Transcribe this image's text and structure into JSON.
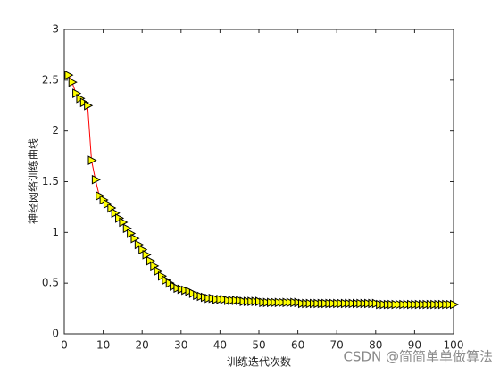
{
  "chart_data": {
    "type": "line",
    "ylabel": "神经网络训练曲线",
    "xlabel": "训练迭代次数",
    "watermark": "CSDN @简简单单做算法",
    "x": [
      1,
      2,
      3,
      4,
      5,
      6,
      7,
      8,
      9,
      10,
      11,
      12,
      13,
      14,
      15,
      16,
      17,
      18,
      19,
      20,
      21,
      22,
      23,
      24,
      25,
      26,
      27,
      28,
      29,
      30,
      31,
      32,
      33,
      34,
      35,
      36,
      37,
      38,
      39,
      40,
      41,
      42,
      43,
      44,
      45,
      46,
      47,
      48,
      49,
      50,
      51,
      52,
      53,
      54,
      55,
      56,
      57,
      58,
      59,
      60,
      61,
      62,
      63,
      64,
      65,
      66,
      67,
      68,
      69,
      70,
      71,
      72,
      73,
      74,
      75,
      76,
      77,
      78,
      79,
      80,
      81,
      82,
      83,
      84,
      85,
      86,
      87,
      88,
      89,
      90,
      91,
      92,
      93,
      94,
      95,
      96,
      97,
      98,
      99,
      100
    ],
    "values": [
      2.55,
      2.48,
      2.37,
      2.32,
      2.28,
      2.25,
      1.71,
      1.52,
      1.36,
      1.32,
      1.28,
      1.24,
      1.19,
      1.14,
      1.1,
      1.04,
      0.99,
      0.94,
      0.88,
      0.83,
      0.78,
      0.72,
      0.67,
      0.62,
      0.57,
      0.53,
      0.5,
      0.47,
      0.45,
      0.44,
      0.43,
      0.42,
      0.4,
      0.38,
      0.37,
      0.36,
      0.35,
      0.35,
      0.34,
      0.34,
      0.34,
      0.33,
      0.33,
      0.33,
      0.33,
      0.32,
      0.32,
      0.32,
      0.32,
      0.32,
      0.31,
      0.31,
      0.31,
      0.31,
      0.31,
      0.31,
      0.31,
      0.31,
      0.31,
      0.31,
      0.3,
      0.3,
      0.3,
      0.3,
      0.3,
      0.3,
      0.3,
      0.3,
      0.3,
      0.3,
      0.3,
      0.3,
      0.3,
      0.3,
      0.3,
      0.3,
      0.3,
      0.3,
      0.3,
      0.3,
      0.29,
      0.29,
      0.29,
      0.29,
      0.29,
      0.29,
      0.29,
      0.29,
      0.29,
      0.29,
      0.29,
      0.29,
      0.29,
      0.29,
      0.29,
      0.29,
      0.29,
      0.29,
      0.29,
      0.29
    ],
    "line_color": "#ff0000",
    "marker_color": "#ffff00",
    "xlim": [
      0,
      100
    ],
    "xticks": [
      0,
      10,
      20,
      30,
      40,
      50,
      60,
      70,
      80,
      90,
      100
    ],
    "ylim": [
      0,
      3
    ],
    "yticks": [
      0,
      0.5,
      1,
      1.5,
      2,
      2.5,
      3
    ]
  }
}
